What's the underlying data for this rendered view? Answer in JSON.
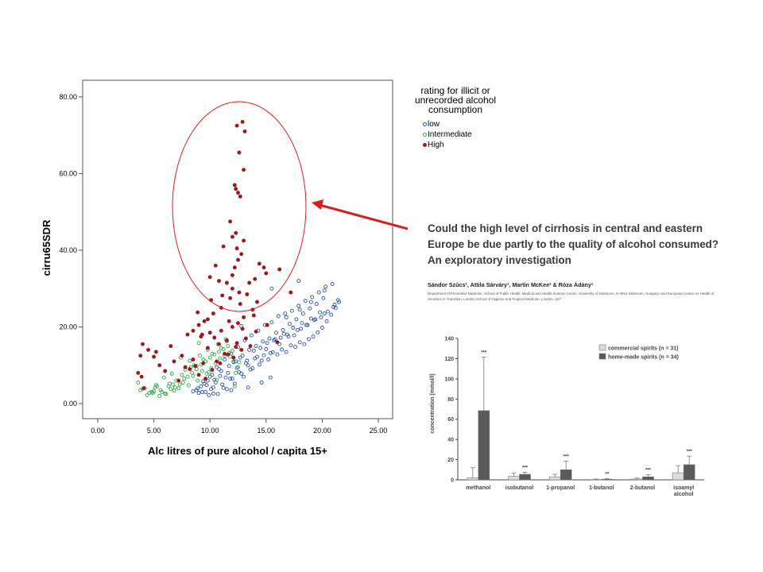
{
  "colors": {
    "low": "#2b4fa8",
    "intermediate": "#2ea84a",
    "high": "#9b1b1b",
    "annotation": "#d42020",
    "bar_commercial": "#dcdcdc",
    "bar_homemade": "#5a5a5a"
  },
  "annotation": {
    "shape": "ellipse-with-arrow"
  },
  "legend": {
    "title": "rating for illicit or unrecorded alcohol consumption",
    "items": [
      {
        "key": "low",
        "label": "low",
        "marker": "hollow-circle"
      },
      {
        "key": "intermediate",
        "label": "Intermediate",
        "marker": "hollow-circle"
      },
      {
        "key": "high",
        "label": "High",
        "marker": "filled-circle"
      }
    ]
  },
  "paper": {
    "title": "Could the high level of cirrhosis in central and eastern Europe be due partly to the quality of alcohol consumed? An exploratory investigation",
    "authors": "Sándor Szűcs¹, Attila Sárváry¹, Martin McKee² & Róza Ádány¹",
    "affiliations": "Department of Preventive Medicine, School of Public Health, Medical and Health Science Centre, University of Debrecen, H-4012 Debrecen, Hungary¹ and European Centre on Health of Societies in Transition, London School of Hygiene and Tropical Medicine, London, UK²"
  },
  "chart_data": [
    {
      "type": "scatter",
      "xlabel": "Alc litres of pure alcohol / capita 15+",
      "ylabel": "cirru65SDR",
      "xlim": [
        0,
        25
      ],
      "ylim": [
        0,
        80
      ],
      "xticks": [
        "0.00",
        "5.00",
        "10.00",
        "15.00",
        "20.00",
        "25.00"
      ],
      "yticks": [
        "0.00",
        "20.00",
        "40.00",
        "60.00",
        "80.00"
      ],
      "series": [
        {
          "name": "low",
          "x": [
            8.5,
            9.2,
            9.8,
            10.1,
            10.5,
            10.9,
            11.2,
            11.6,
            12.0,
            12.4,
            12.8,
            13.2,
            13.6,
            14.0,
            14.4,
            14.8,
            15.2,
            15.6,
            16.0,
            16.4,
            16.8,
            17.2,
            17.6,
            18.0,
            18.4,
            18.8,
            19.2,
            19.6,
            20.0,
            20.4,
            20.8,
            21.2,
            21.5,
            9.5,
            10.2,
            10.8,
            11.4,
            12.1,
            12.7,
            13.3,
            13.9,
            14.5,
            15.1,
            15.7,
            16.3,
            16.9,
            17.5,
            18.1,
            18.7,
            19.3,
            19.9,
            20.5,
            21.1,
            9.0,
            9.7,
            10.4,
            11.0,
            11.7,
            12.3,
            12.9,
            13.5,
            14.1,
            14.7,
            15.3,
            15.9,
            16.5,
            17.1,
            17.7,
            18.3,
            18.9,
            19.5,
            20.1,
            8.8,
            9.4,
            10.0,
            10.6,
            11.3,
            11.9,
            12.5,
            13.1,
            13.7,
            14.3,
            14.9,
            15.5,
            16.1,
            16.7,
            17.3,
            17.9,
            18.5,
            19.1,
            19.7,
            20.3,
            20.9,
            9.6,
            10.3,
            11.1,
            11.8,
            12.6,
            13.4,
            14.2,
            15.0,
            15.8,
            16.6,
            17.4,
            18.2,
            19.0,
            19.8,
            10.7,
            11.5,
            12.2,
            13.0,
            13.8,
            14.6,
            15.4,
            16.2,
            17.0,
            17.8,
            18.6,
            19.4,
            20.2,
            21.0,
            8.9,
            9.3,
            9.9,
            10.3,
            11.9,
            13.4,
            14.6,
            15.4,
            12.8,
            16.8,
            18.0,
            19.0,
            20.2,
            21.4,
            17.9,
            15.5
          ],
          "y": [
            3.2,
            4.5,
            6.0,
            3.8,
            5.5,
            7.2,
            4.1,
            8.0,
            6.5,
            9.3,
            7.8,
            10.5,
            8.9,
            11.8,
            10.2,
            12.6,
            11.5,
            13.4,
            12.8,
            14.1,
            13.5,
            15.2,
            14.8,
            16.0,
            15.5,
            16.8,
            17.5,
            18.6,
            19.8,
            21.5,
            23.2,
            25.0,
            26.5,
            5.2,
            7.5,
            9.0,
            6.8,
            10.8,
            12.0,
            11.2,
            13.8,
            14.5,
            15.8,
            16.5,
            17.2,
            18.0,
            17.8,
            19.5,
            20.5,
            21.8,
            22.5,
            24.0,
            25.8,
            2.8,
            4.8,
            6.2,
            8.5,
            9.8,
            11.0,
            12.5,
            14.0,
            15.0,
            16.2,
            17.0,
            18.5,
            19.2,
            20.8,
            22.0,
            23.5,
            24.8,
            26.0,
            27.5,
            3.5,
            5.8,
            7.0,
            9.5,
            11.5,
            13.0,
            14.8,
            16.5,
            17.8,
            19.0,
            20.5,
            21.2,
            22.8,
            23.5,
            24.2,
            25.5,
            26.8,
            27.8,
            29.0,
            30.5,
            31.2,
            3.0,
            4.2,
            5.0,
            6.5,
            8.2,
            10.0,
            12.2,
            14.2,
            16.8,
            18.2,
            19.8,
            21.0,
            22.2,
            23.8,
            2.5,
            3.8,
            5.2,
            7.0,
            9.2,
            11.2,
            13.2,
            15.5,
            17.5,
            19.2,
            20.5,
            22.0,
            23.5,
            25.2,
            4.0,
            3.0,
            2.2,
            2.6,
            3.5,
            4.2,
            5.5,
            6.8,
            20.2,
            22.5,
            24.5,
            26.5,
            29.5,
            27.0,
            32.0,
            30.0
          ]
        },
        {
          "name": "Intermediate",
          "x": [
            3.8,
            4.2,
            4.6,
            5.0,
            5.3,
            5.7,
            6.1,
            6.5,
            6.9,
            7.3,
            7.7,
            8.1,
            8.5,
            8.9,
            9.3,
            9.7,
            10.1,
            10.5,
            10.9,
            11.3,
            11.7,
            12.1,
            12.5,
            4.4,
            4.8,
            5.2,
            5.6,
            6.0,
            6.4,
            6.8,
            7.2,
            7.6,
            8.0,
            8.4,
            8.8,
            9.2,
            9.6,
            10.0,
            10.4,
            10.8,
            11.2,
            11.6,
            12.0,
            3.6,
            4.0,
            5.5,
            6.3,
            7.0,
            7.8,
            8.6,
            9.4,
            10.2,
            11.0,
            11.8,
            12.6,
            5.1,
            5.9,
            6.7,
            7.5,
            8.3,
            9.1,
            9.9,
            10.7,
            11.5,
            12.3,
            4.9,
            6.6,
            8.2,
            9.8,
            11.4,
            10.6,
            12.2,
            9.0,
            7.4,
            8.8
          ],
          "y": [
            3.5,
            4.0,
            2.8,
            3.2,
            4.5,
            3.0,
            2.5,
            3.8,
            4.2,
            5.0,
            6.5,
            4.8,
            7.2,
            6.0,
            8.5,
            7.8,
            9.2,
            10.5,
            11.8,
            12.5,
            13.2,
            11.0,
            9.5,
            2.2,
            3.0,
            4.8,
            3.5,
            2.6,
            5.2,
            3.4,
            4.0,
            5.5,
            7.0,
            8.0,
            9.0,
            10.2,
            11.0,
            12.0,
            12.8,
            13.5,
            14.2,
            15.0,
            13.8,
            5.5,
            3.8,
            2.0,
            4.5,
            6.0,
            8.8,
            10.0,
            11.5,
            13.0,
            14.5,
            12.2,
            10.8,
            4.2,
            6.8,
            5.0,
            7.5,
            9.5,
            12.5,
            8.2,
            15.5,
            16.2,
            8.0,
            2.8,
            7.8,
            11.2,
            14.0,
            16.8,
            6.2,
            4.5,
            15.8,
            12.0,
            9.8
          ]
        },
        {
          "name": "High",
          "x": [
            12.9,
            13.1,
            12.4,
            12.6,
            12.2,
            13.0,
            12.3,
            12.5,
            12.7,
            11.8,
            12.0,
            12.3,
            12.4,
            12.8,
            13.0,
            12.5,
            12.2,
            12.0,
            11.2,
            10.5,
            10.0,
            10.8,
            11.5,
            12.0,
            12.6,
            13.5,
            14.0,
            14.4,
            14.8,
            13.3,
            14.2,
            15.0,
            16.2,
            17.2,
            13.8,
            12.7,
            11.8,
            11.0,
            10.3,
            9.8,
            9.5,
            9.0,
            8.5,
            8.0,
            9.2,
            10.0,
            11.0,
            12.0,
            12.5,
            13.0,
            11.5,
            10.8,
            9.8,
            11.3,
            12.8,
            13.6,
            12.1,
            10.6,
            9.4,
            8.7,
            8.2,
            7.5,
            6.8,
            6.0,
            5.5,
            5.0,
            4.5,
            4.0,
            3.8,
            3.6,
            4.1,
            3.9,
            5.2,
            6.5,
            7.2,
            7.8,
            8.5,
            9.0,
            9.6,
            10.2,
            10.9,
            11.6,
            12.4,
            13.2,
            14.1,
            15.1,
            16.0,
            11.7,
            10.4,
            9.3,
            12.3,
            13.9,
            8.9,
            10.1,
            11.1,
            12.9
          ],
          "y": [
            73.5,
            71.0,
            72.5,
            65.5,
            57.0,
            61.0,
            56.0,
            55.0,
            54.0,
            47.5,
            43.5,
            44.5,
            40.5,
            39.0,
            42.5,
            37.5,
            35.5,
            33.5,
            41.0,
            36.0,
            33.0,
            32.0,
            31.5,
            30.0,
            29.0,
            31.5,
            32.5,
            36.5,
            35.5,
            28.5,
            26.5,
            34.0,
            35.0,
            29.0,
            24.5,
            26.0,
            27.5,
            25.0,
            23.5,
            22.0,
            21.5,
            20.5,
            19.0,
            18.0,
            17.5,
            18.5,
            19.0,
            20.0,
            21.0,
            22.5,
            16.5,
            15.5,
            14.5,
            13.0,
            14.0,
            15.0,
            12.0,
            11.0,
            10.5,
            9.8,
            9.0,
            12.5,
            11.0,
            8.5,
            10.0,
            12.2,
            14.0,
            15.5,
            12.5,
            8.0,
            4.0,
            7.0,
            13.5,
            15.0,
            6.0,
            9.5,
            11.5,
            7.5,
            6.5,
            8.8,
            10.5,
            12.8,
            15.8,
            17.0,
            18.8,
            20.5,
            16.0,
            21.5,
            17.2,
            18.0,
            14.8,
            23.0,
            23.8,
            27.0,
            28.2,
            19.5
          ]
        }
      ]
    },
    {
      "type": "bar",
      "ylabel": "concentration [mmol/l]",
      "ylim": [
        0,
        140
      ],
      "yticks": [
        "0",
        "20",
        "40",
        "60",
        "80",
        "100",
        "120",
        "140"
      ],
      "categories": [
        "methanol",
        "isobutanol",
        "1-propanol",
        "1-butanol",
        "2-butanol",
        "isoamyl\nalcohol"
      ],
      "significance": [
        "***",
        "***",
        "***",
        "**",
        "***",
        "***"
      ],
      "series": [
        {
          "name": "commercial spirits (n = 31)",
          "values": [
            2.0,
            3.5,
            3.0,
            0.3,
            0.8,
            7.0
          ],
          "errors": [
            10.0,
            3.0,
            2.5,
            0.5,
            1.0,
            7.0
          ]
        },
        {
          "name": "home-made spirits (n = 34)",
          "values": [
            68.5,
            5.5,
            10.0,
            0.6,
            3.0,
            15.0
          ],
          "errors": [
            53.0,
            2.0,
            8.5,
            0.5,
            2.0,
            8.5
          ]
        }
      ]
    }
  ]
}
